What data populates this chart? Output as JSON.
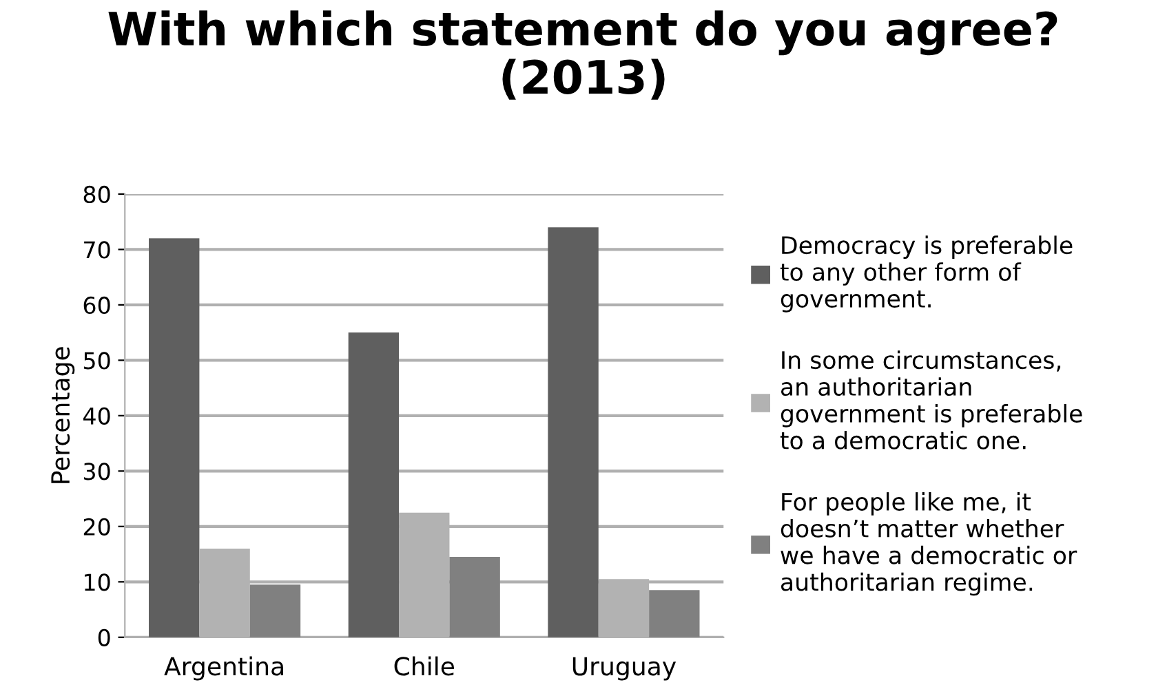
{
  "chart_data": {
    "type": "bar",
    "title": "With which statement do you agree?\n(2013)",
    "ylabel": "Percentage",
    "categories": [
      "Argentina",
      "Chile",
      "Uruguay"
    ],
    "series": [
      {
        "name": "Democracy is preferable\nto any other form of\ngovernment.",
        "color": "#5f5f5f",
        "values": [
          72,
          55,
          74
        ]
      },
      {
        "name": "In some circumstances,\nan authoritarian\ngovernment is preferable\nto a democratic one.",
        "color": "#b2b2b2",
        "values": [
          16,
          22.5,
          10.5
        ]
      },
      {
        "name": "For people like me, it\ndoesn’t matter whether\nwe have a democratic or\nauthoritarian regime.",
        "color": "#808080",
        "values": [
          9.5,
          14.5,
          8.5
        ]
      }
    ],
    "ylim": [
      0,
      80
    ],
    "yticks": [
      0,
      10,
      20,
      30,
      40,
      50,
      60,
      70,
      80
    ],
    "grid": "y",
    "legend": "right"
  }
}
